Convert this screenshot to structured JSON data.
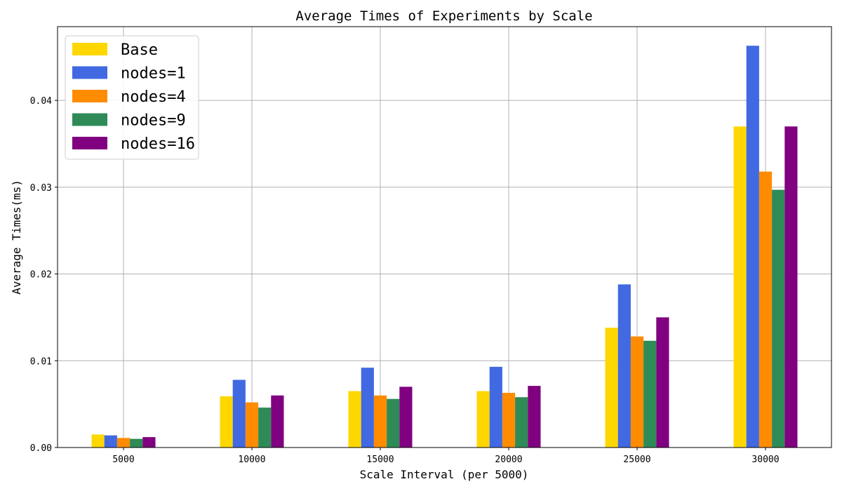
{
  "chart_data": {
    "type": "bar",
    "title": "Average Times of Experiments by Scale",
    "xlabel": "Scale Interval (per 5000)",
    "ylabel": "Average Times(ms)",
    "categories": [
      "5000",
      "10000",
      "15000",
      "20000",
      "25000",
      "30000"
    ],
    "ylim": [
      0,
      0.0485
    ],
    "yticks": [
      0.0,
      0.01,
      0.02,
      0.03,
      0.04
    ],
    "ytick_labels": [
      "0.00",
      "0.01",
      "0.02",
      "0.03",
      "0.04"
    ],
    "grid": true,
    "legend_position": "top-left",
    "series": [
      {
        "name": "Base",
        "color": "#FFD700",
        "values": [
          0.0015,
          0.0059,
          0.0065,
          0.0065,
          0.0138,
          0.037
        ]
      },
      {
        "name": "nodes=1",
        "color": "#4169E1",
        "values": [
          0.0014,
          0.0078,
          0.0092,
          0.0093,
          0.0188,
          0.0463
        ]
      },
      {
        "name": "nodes=4",
        "color": "#FF8C00",
        "values": [
          0.0011,
          0.0052,
          0.006,
          0.0063,
          0.0128,
          0.0318
        ]
      },
      {
        "name": "nodes=9",
        "color": "#2E8B57",
        "values": [
          0.001,
          0.0046,
          0.0056,
          0.0058,
          0.0123,
          0.0297
        ]
      },
      {
        "name": "nodes=16",
        "color": "#800080",
        "values": [
          0.0012,
          0.006,
          0.007,
          0.0071,
          0.015,
          0.037
        ]
      }
    ]
  }
}
